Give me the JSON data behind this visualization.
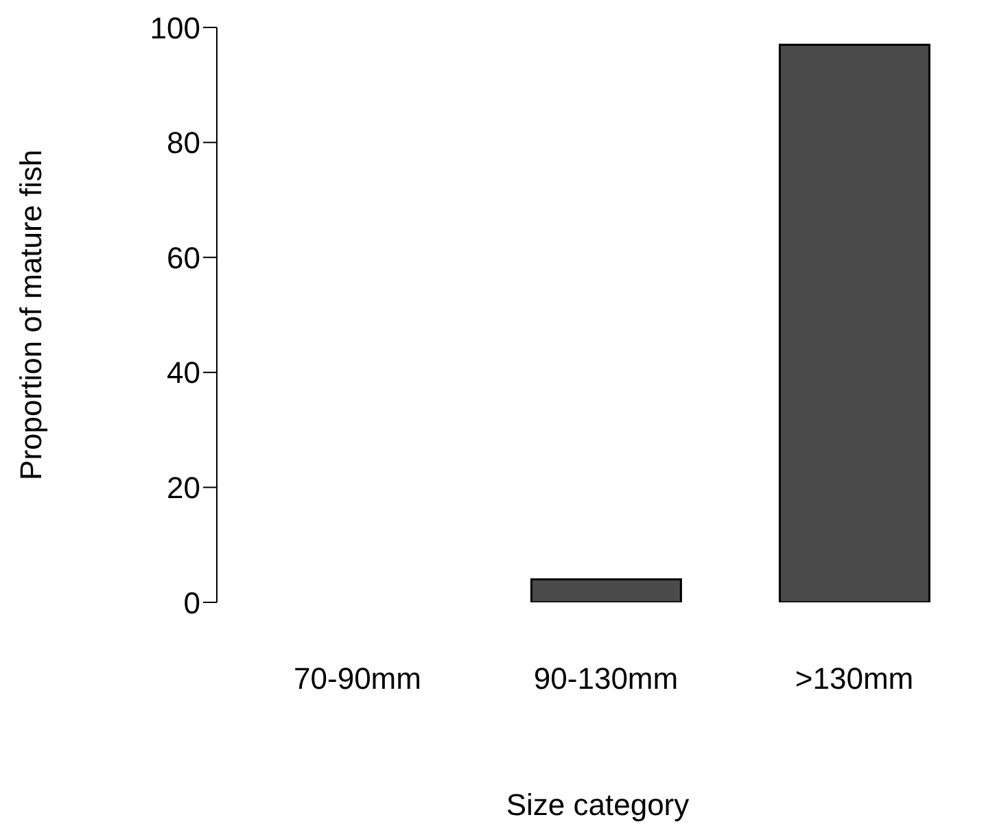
{
  "chart_data": {
    "type": "bar",
    "xlabel": "Size category",
    "ylabel": "Proportion of mature fish",
    "categories": [
      "70-90mm",
      "90-130mm",
      ">130mm"
    ],
    "values": [
      0,
      4,
      97
    ],
    "color": "#4a4a4a",
    "ylim": [
      0,
      100
    ],
    "yticks": [
      0,
      20,
      40,
      60,
      80,
      100
    ],
    "grid": false
  }
}
